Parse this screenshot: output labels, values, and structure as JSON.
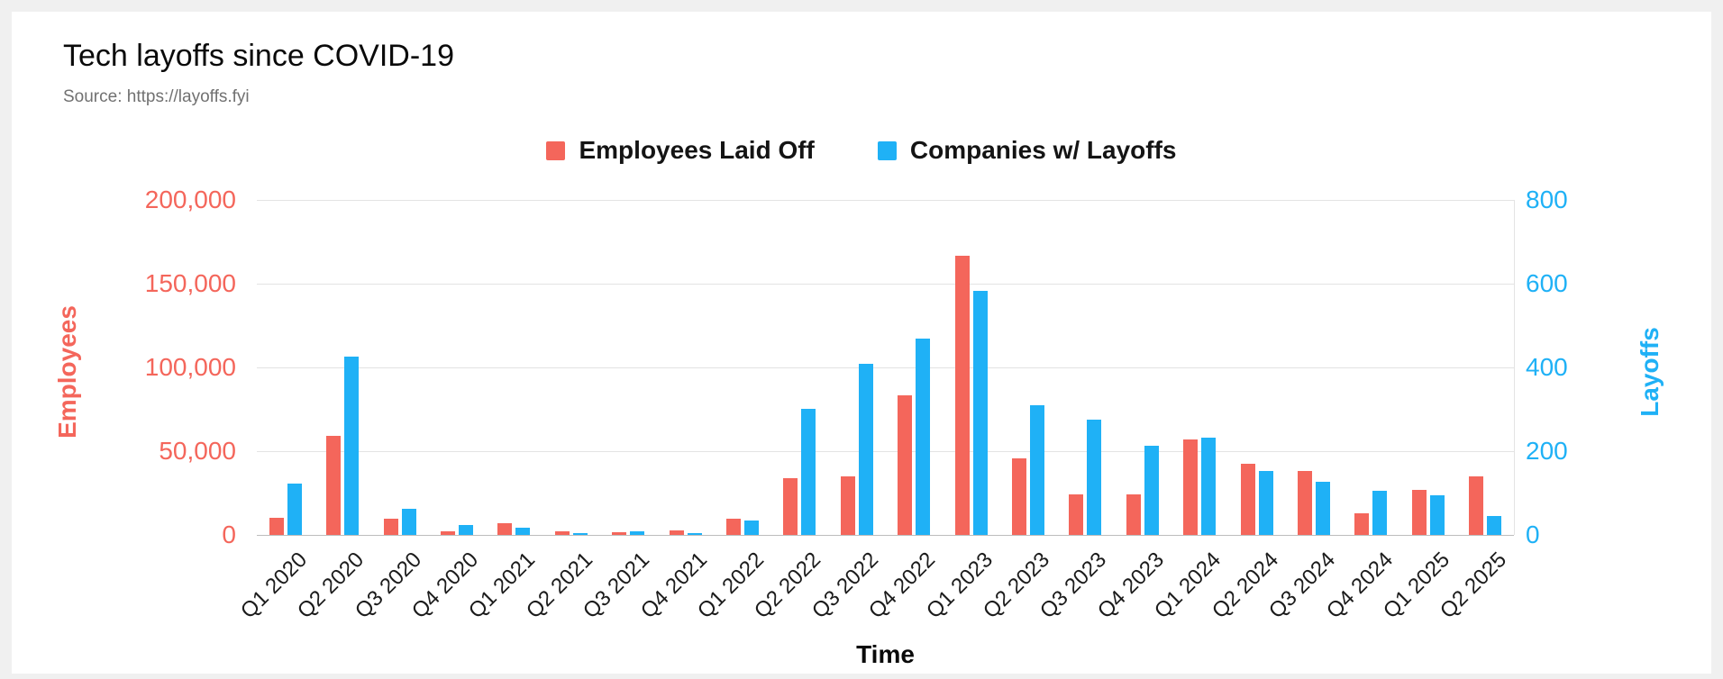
{
  "page": {
    "background_color": "#f0f0f0",
    "card_background_color": "#ffffff"
  },
  "header": {
    "title": "Tech layoffs since COVID-19",
    "source": "Source: https://layoffs.fyi"
  },
  "legend": {
    "items": [
      {
        "label": "Employees Laid Off",
        "color": "#f4665b"
      },
      {
        "label": "Companies w/ Layoffs",
        "color": "#1fb1f6"
      }
    ]
  },
  "chart_data": {
    "type": "bar",
    "title": "Tech layoffs since COVID-19",
    "subtitle": "Source: https://layoffs.fyi",
    "xlabel": "Time",
    "grid": true,
    "legend_position": "top",
    "categories": [
      "Q1 2020",
      "Q2 2020",
      "Q3 2020",
      "Q4 2020",
      "Q1 2021",
      "Q2 2021",
      "Q3 2021",
      "Q4 2021",
      "Q1 2022",
      "Q2 2022",
      "Q3 2022",
      "Q4 2022",
      "Q1 2023",
      "Q2 2023",
      "Q3 2023",
      "Q4 2023",
      "Q1 2024",
      "Q2 2024",
      "Q3 2024",
      "Q4 2024",
      "Q1 2025",
      "Q2 2025"
    ],
    "series": [
      {
        "name": "Employees Laid Off",
        "axis": "left",
        "color": "#f4665b",
        "values": [
          10000,
          59000,
          9800,
          2000,
          7200,
          2000,
          1500,
          2600,
          9800,
          34000,
          34800,
          83300,
          166600,
          45900,
          24300,
          24300,
          57000,
          42600,
          38000,
          13100,
          26900,
          34800
        ]
      },
      {
        "name": "Companies w/ Layoffs",
        "axis": "right",
        "color": "#1fb1f6",
        "values": [
          123,
          425,
          63,
          24,
          18,
          5,
          8,
          5,
          34,
          301,
          409,
          469,
          582,
          309,
          275,
          212,
          233,
          152,
          126,
          105,
          94,
          45
        ]
      }
    ],
    "left_axis": {
      "title": "Employees",
      "color": "#f4665b",
      "min": 0,
      "max": 200000,
      "ticks": [
        0,
        50000,
        100000,
        150000,
        200000
      ],
      "tick_labels": [
        "0",
        "50,000",
        "100,000",
        "150,000",
        "200,000"
      ]
    },
    "right_axis": {
      "title": "Layoffs",
      "color": "#1fb1f6",
      "min": 0,
      "max": 800,
      "ticks": [
        0,
        200,
        400,
        600,
        800
      ],
      "tick_labels": [
        "0",
        "200",
        "400",
        "600",
        "800"
      ]
    }
  }
}
